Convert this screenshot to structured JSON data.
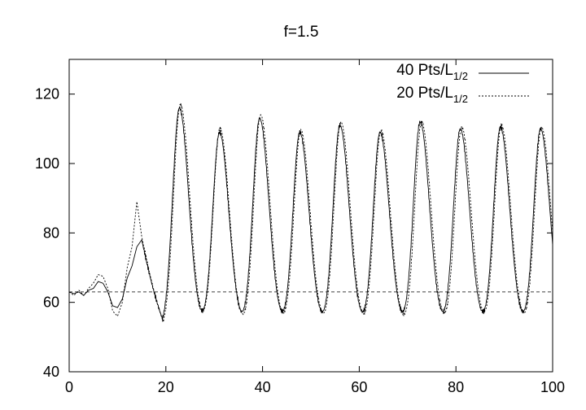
{
  "chart_data": {
    "type": "line",
    "title": "f=1.5",
    "xlabel": "",
    "ylabel": "",
    "xlim": [
      0,
      100
    ],
    "ylim": [
      40,
      130
    ],
    "grid": false,
    "legend_position": "top-right",
    "x_ticks": [
      0,
      20,
      40,
      60,
      80,
      100
    ],
    "y_ticks": [
      40,
      60,
      80,
      100,
      120
    ],
    "x_tick_labels": [
      "0",
      "20",
      "40",
      "60",
      "80",
      "100"
    ],
    "y_tick_labels": [
      "40",
      "60",
      "80",
      "100",
      "120"
    ],
    "reference_line": {
      "y": 63,
      "style": "dashed"
    },
    "series": [
      {
        "name_main": "40 Pts/L",
        "name_sub": "1/2",
        "style": "solid",
        "color": "#000000",
        "initial": {
          "x": [
            0,
            1,
            2,
            3,
            4,
            5,
            6,
            7,
            8,
            9,
            10,
            11,
            12,
            13,
            14,
            15
          ],
          "y": [
            63,
            62.5,
            63,
            62,
            63.5,
            64,
            66,
            65.5,
            63,
            59,
            58.5,
            61,
            67,
            70.5,
            76,
            78
          ]
        },
        "peaks": [
          22.8,
          31.1,
          39.4,
          47.7,
          56.0,
          64.3,
          72.6,
          80.9,
          89.2,
          97.5
        ],
        "peak_heights": [
          116,
          109,
          113,
          109,
          111,
          109,
          112,
          110,
          110.5,
          110
        ],
        "trough": 52.5
      },
      {
        "name_main": "20 Pts/L",
        "name_sub": "1/2",
        "style": "dotted",
        "color": "#000000",
        "initial": {
          "x": [
            0,
            1,
            2,
            3,
            4,
            5,
            6,
            7,
            8,
            9,
            10,
            11,
            12,
            13,
            14,
            15
          ],
          "y": [
            63,
            62,
            63.5,
            62,
            64,
            65.5,
            68,
            67.5,
            64,
            57.5,
            56,
            60,
            70,
            76,
            89,
            79
          ]
        },
        "peaks": [
          23.0,
          31.2,
          39.6,
          47.9,
          56.2,
          64.5,
          72.9,
          81.2,
          89.4,
          97.7
        ],
        "peak_heights": [
          117,
          110,
          114,
          109.5,
          112,
          109.5,
          112,
          110.5,
          111,
          110.5
        ],
        "trough": 52
      }
    ]
  }
}
